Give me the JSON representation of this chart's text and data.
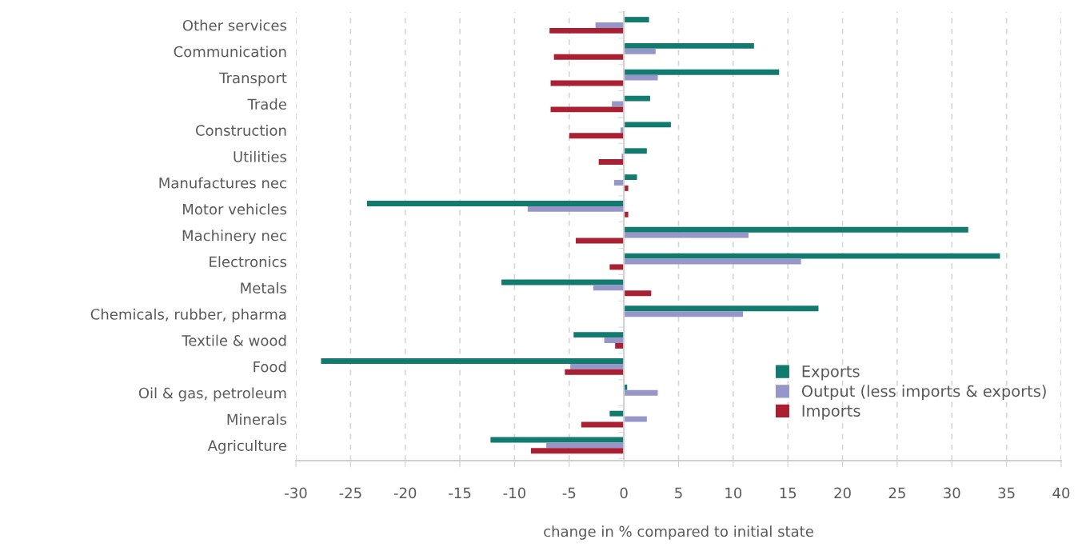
{
  "chart_data": {
    "type": "bar",
    "orientation": "horizontal",
    "xlabel": "change in % compared to initial state",
    "categories": [
      "Other services",
      "Communication",
      "Transport",
      "Trade",
      "Construction",
      "Utilities",
      "Manufactures nec",
      "Motor vehicles",
      "Machinery nec",
      "Electronics",
      "Metals",
      "Chemicals, rubber, pharma",
      "Textile & wood",
      "Food",
      "Oil & gas, petroleum",
      "Minerals",
      "Agriculture"
    ],
    "series": [
      {
        "name": "Exports",
        "color": "#127a6e",
        "values": [
          2.3,
          11.9,
          14.2,
          2.4,
          4.3,
          2.1,
          1.2,
          -23.5,
          31.5,
          34.4,
          -11.2,
          17.8,
          -4.6,
          -27.7,
          0.3,
          -1.3,
          -12.2
        ]
      },
      {
        "name": "Output (less imports & exports)",
        "color": "#9696c8",
        "values": [
          -2.6,
          2.9,
          3.1,
          -1.1,
          -0.3,
          -0.2,
          -0.9,
          -8.8,
          11.4,
          16.2,
          -2.8,
          10.9,
          -1.8,
          -4.9,
          3.1,
          2.1,
          -7.1
        ]
      },
      {
        "name": "Imports",
        "color": "#a82032",
        "values": [
          -6.8,
          -6.4,
          -6.7,
          -6.7,
          -5.0,
          -2.3,
          0.4,
          0.4,
          -4.4,
          -1.3,
          2.5,
          null,
          -0.8,
          -5.4,
          null,
          -3.9,
          -8.5
        ]
      }
    ],
    "xlim": [
      -30,
      40
    ],
    "xticks": [
      -30,
      -25,
      -20,
      -15,
      -10,
      -5,
      0,
      5,
      10,
      15,
      20,
      25,
      30,
      35,
      40
    ],
    "grid": "x",
    "legend": "bottom right"
  }
}
